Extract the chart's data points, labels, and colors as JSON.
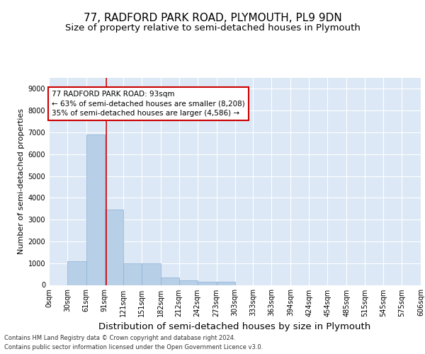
{
  "title": "77, RADFORD PARK ROAD, PLYMOUTH, PL9 9DN",
  "subtitle": "Size of property relative to semi-detached houses in Plymouth",
  "xlabel": "Distribution of semi-detached houses by size in Plymouth",
  "ylabel": "Number of semi-detached properties",
  "footer_line1": "Contains HM Land Registry data © Crown copyright and database right 2024.",
  "footer_line2": "Contains public sector information licensed under the Open Government Licence v3.0.",
  "bar_edges": [
    0,
    30,
    61,
    91,
    121,
    151,
    182,
    212,
    242,
    273,
    303,
    333,
    363,
    394,
    424,
    454,
    485,
    515,
    545,
    575,
    606
  ],
  "bar_heights": [
    0,
    1100,
    6900,
    3450,
    1000,
    1000,
    350,
    200,
    150,
    150,
    0,
    0,
    0,
    0,
    0,
    0,
    0,
    0,
    0,
    0
  ],
  "bar_color": "#b8cfe8",
  "bar_edge_color": "#8aafd4",
  "property_size": 93,
  "property_line_color": "#cc0000",
  "annotation_box_color": "#cc0000",
  "annotation_text": "77 RADFORD PARK ROAD: 93sqm\n← 63% of semi-detached houses are smaller (8,208)\n35% of semi-detached houses are larger (4,586) →",
  "ylim": [
    0,
    9500
  ],
  "yticks": [
    0,
    1000,
    2000,
    3000,
    4000,
    5000,
    6000,
    7000,
    8000,
    9000
  ],
  "xtick_labels": [
    "0sqm",
    "30sqm",
    "61sqm",
    "91sqm",
    "121sqm",
    "151sqm",
    "182sqm",
    "212sqm",
    "242sqm",
    "273sqm",
    "303sqm",
    "333sqm",
    "363sqm",
    "394sqm",
    "424sqm",
    "454sqm",
    "485sqm",
    "515sqm",
    "545sqm",
    "575sqm",
    "606sqm"
  ],
  "bg_color": "#dce8f5",
  "fig_bg_color": "#ffffff",
  "title_fontsize": 11,
  "subtitle_fontsize": 9.5,
  "xlabel_fontsize": 9.5,
  "ylabel_fontsize": 8,
  "tick_fontsize": 7,
  "footer_fontsize": 6,
  "annotation_fontsize": 7.5
}
